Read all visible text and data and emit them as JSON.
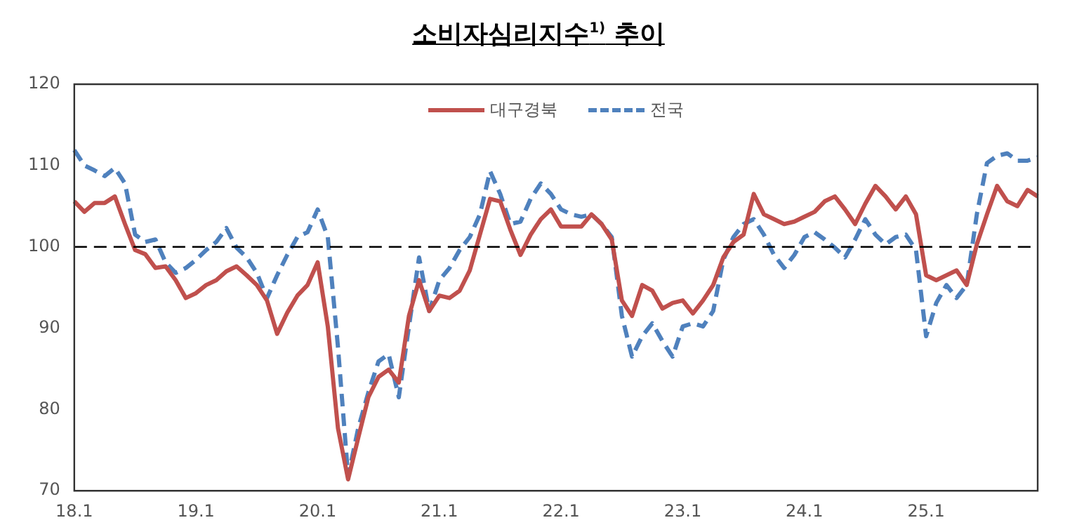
{
  "chart_data": {
    "type": "line",
    "title": "소비자심리지수$^{1)}$ 추이",
    "categories": [
      "18.1",
      null,
      null,
      null,
      null,
      null,
      null,
      null,
      null,
      null,
      null,
      null,
      "19.1",
      null,
      null,
      null,
      null,
      null,
      null,
      null,
      null,
      null,
      null,
      null,
      "20.1",
      null,
      null,
      null,
      null,
      null,
      null,
      null,
      null,
      null,
      null,
      null,
      "21.1",
      null,
      null,
      null,
      null,
      null,
      null,
      null,
      null,
      null,
      null,
      null,
      "22.1",
      null,
      null,
      null,
      null,
      null,
      null,
      null,
      null,
      null,
      null,
      null,
      "23.1",
      null,
      null,
      null,
      null,
      null,
      null,
      null,
      null,
      null,
      null,
      null,
      "24.1",
      null,
      null,
      null,
      null,
      null,
      null,
      null,
      null,
      null,
      null,
      null,
      "25.1",
      null,
      null,
      null,
      null,
      null,
      null,
      null,
      null,
      null,
      null,
      null
    ],
    "series": [
      {
        "name": "대구경북",
        "color": "#c0504d",
        "line_style": "solid",
        "values": [
          105.6,
          104.3,
          105.4,
          105.4,
          106.2,
          102.8,
          99.6,
          99.1,
          97.4,
          97.6,
          95.9,
          93.7,
          94.3,
          95.3,
          95.9,
          97.0,
          97.6,
          96.5,
          95.3,
          93.4,
          89.3,
          91.9,
          94.0,
          95.3,
          98.1,
          90.2,
          77.7,
          71.4,
          76.5,
          81.5,
          84.0,
          84.9,
          83.3,
          91.5,
          95.9,
          92.1,
          94.0,
          93.7,
          94.6,
          97.1,
          101.5,
          105.9,
          105.6,
          102.1,
          99.0,
          101.5,
          103.4,
          104.6,
          102.5,
          102.5,
          102.5,
          104.0,
          102.8,
          100.9,
          93.4,
          91.5,
          95.3,
          94.6,
          92.4,
          93.1,
          93.4,
          91.8,
          93.4,
          95.3,
          98.7,
          100.6,
          101.5,
          106.5,
          104.0,
          103.4,
          102.8,
          103.1,
          103.7,
          104.3,
          105.6,
          106.2,
          104.6,
          102.8,
          105.3,
          107.5,
          106.2,
          104.6,
          106.2,
          104.0,
          96.5,
          95.9,
          96.5,
          97.1,
          95.3,
          100.3,
          104.0,
          107.5,
          105.6,
          105.0,
          107.0,
          106.2
        ]
      },
      {
        "name": "전국",
        "color": "#4f81bd",
        "line_style": "dashed",
        "values": [
          111.9,
          110.0,
          109.4,
          108.7,
          109.7,
          107.8,
          101.5,
          100.6,
          100.9,
          98.1,
          96.8,
          97.4,
          98.4,
          99.6,
          100.6,
          102.3,
          99.9,
          98.7,
          96.8,
          93.7,
          96.5,
          99.0,
          101.2,
          101.8,
          104.6,
          101.2,
          87.7,
          71.8,
          77.7,
          82.1,
          85.9,
          86.8,
          81.5,
          90.2,
          98.7,
          92.1,
          95.9,
          97.4,
          99.6,
          101.2,
          104.0,
          109.3,
          106.5,
          102.8,
          103.1,
          105.9,
          107.8,
          106.5,
          104.6,
          104.0,
          103.7,
          104.0,
          102.8,
          101.2,
          91.5,
          86.5,
          89.0,
          90.6,
          88.4,
          86.5,
          90.2,
          90.6,
          90.2,
          92.1,
          98.4,
          101.2,
          102.8,
          103.4,
          101.5,
          99.0,
          97.4,
          99.0,
          101.2,
          101.8,
          100.9,
          99.9,
          98.7,
          100.9,
          103.4,
          101.5,
          100.3,
          101.2,
          101.5,
          99.6,
          89.0,
          93.1,
          95.3,
          93.7,
          95.3,
          104.0,
          110.3,
          111.2,
          111.5,
          110.6,
          110.6,
          111.0
        ]
      }
    ],
    "ylim": [
      70,
      120
    ],
    "yticks": [
      70,
      80,
      90,
      100,
      110,
      120
    ],
    "ref_lines": [
      {
        "axis": "y",
        "value": 100,
        "color": "#000000",
        "line_style": "dashed"
      }
    ],
    "legend": "top",
    "grid": false,
    "marker": "none"
  }
}
